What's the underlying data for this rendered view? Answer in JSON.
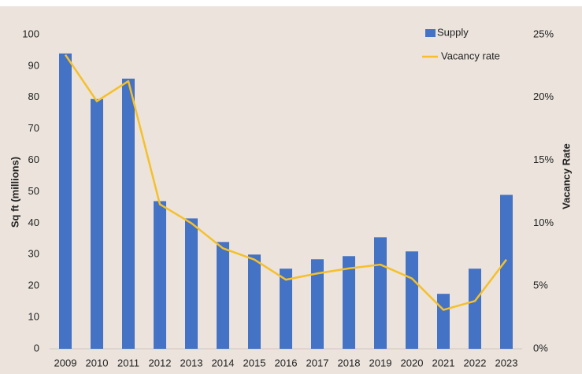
{
  "chart_data": {
    "type": "bar-line",
    "categories": [
      "2009",
      "2010",
      "2011",
      "2012",
      "2013",
      "2014",
      "2015",
      "2016",
      "2017",
      "2018",
      "2019",
      "2020",
      "2021",
      "2022",
      "2023"
    ],
    "series": [
      {
        "name": "Supply",
        "type": "bar",
        "color": "#4472c4",
        "axis": "y",
        "values": [
          94,
          79.5,
          86,
          47,
          41.5,
          34,
          30,
          25.5,
          28.5,
          29.5,
          35.5,
          31,
          17.5,
          25.5,
          49
        ]
      },
      {
        "name": "Vacancy rate",
        "type": "line",
        "color": "#f5c02a",
        "axis": "y2",
        "values": [
          23.4,
          19.7,
          21.3,
          11.5,
          10.0,
          8.0,
          7.1,
          5.5,
          6.0,
          6.4,
          6.7,
          5.6,
          3.1,
          3.8,
          7.1
        ]
      }
    ],
    "ylabel": "Sq ft (millions)",
    "y2label": "Vacancy Rate",
    "ylim": [
      0,
      100
    ],
    "yticks": [
      0,
      10,
      20,
      30,
      40,
      50,
      60,
      70,
      80,
      90,
      100
    ],
    "y2lim": [
      0,
      25
    ],
    "y2ticks": [
      {
        "value": 0,
        "label": "0%"
      },
      {
        "value": 5,
        "label": "5%"
      },
      {
        "value": 10,
        "label": "10%"
      },
      {
        "value": 15,
        "label": "15%"
      },
      {
        "value": 20,
        "label": "20%"
      },
      {
        "value": 25,
        "label": "25%"
      }
    ],
    "grid": false,
    "legend": "upper right"
  }
}
